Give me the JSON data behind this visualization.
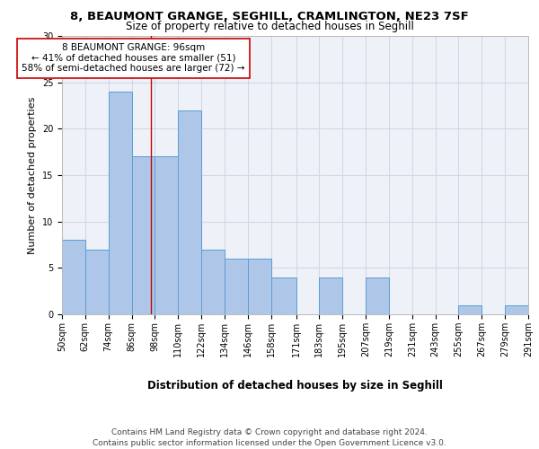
{
  "title1": "8, BEAUMONT GRANGE, SEGHILL, CRAMLINGTON, NE23 7SF",
  "title2": "Size of property relative to detached houses in Seghill",
  "xlabel": "Distribution of detached houses by size in Seghill",
  "ylabel": "Number of detached properties",
  "annotation_line1": "8 BEAUMONT GRANGE: 96sqm",
  "annotation_line2": "← 41% of detached houses are smaller (51)",
  "annotation_line3": "58% of semi-detached houses are larger (72) →",
  "property_size": 96,
  "bin_edges": [
    50,
    62,
    74,
    86,
    98,
    110,
    122,
    134,
    146,
    158,
    171,
    183,
    195,
    207,
    219,
    231,
    243,
    255,
    267,
    279,
    291
  ],
  "bin_labels": [
    "50sqm",
    "62sqm",
    "74sqm",
    "86sqm",
    "98sqm",
    "110sqm",
    "122sqm",
    "134sqm",
    "146sqm",
    "158sqm",
    "171sqm",
    "183sqm",
    "195sqm",
    "207sqm",
    "219sqm",
    "231sqm",
    "243sqm",
    "255sqm",
    "267sqm",
    "279sqm",
    "291sqm"
  ],
  "bar_heights": [
    8,
    7,
    24,
    17,
    17,
    22,
    7,
    6,
    6,
    4,
    0,
    4,
    0,
    4,
    0,
    0,
    0,
    1,
    0,
    1,
    1
  ],
  "bar_color": "#aec6e8",
  "bar_edge_color": "#5a9fd4",
  "vline_x": 96,
  "vline_color": "#cc0000",
  "annotation_box_edge_color": "#cc0000",
  "ylim": [
    0,
    30
  ],
  "yticks": [
    0,
    5,
    10,
    15,
    20,
    25,
    30
  ],
  "grid_color": "#d0d8e8",
  "background_color": "#eef2f8",
  "footer_text": "Contains HM Land Registry data © Crown copyright and database right 2024.\nContains public sector information licensed under the Open Government Licence v3.0.",
  "title1_fontsize": 9.5,
  "title2_fontsize": 8.5,
  "annotation_fontsize": 7.5,
  "ylabel_fontsize": 8,
  "xlabel_fontsize": 8.5,
  "tick_label_fontsize": 7,
  "footer_fontsize": 6.5
}
